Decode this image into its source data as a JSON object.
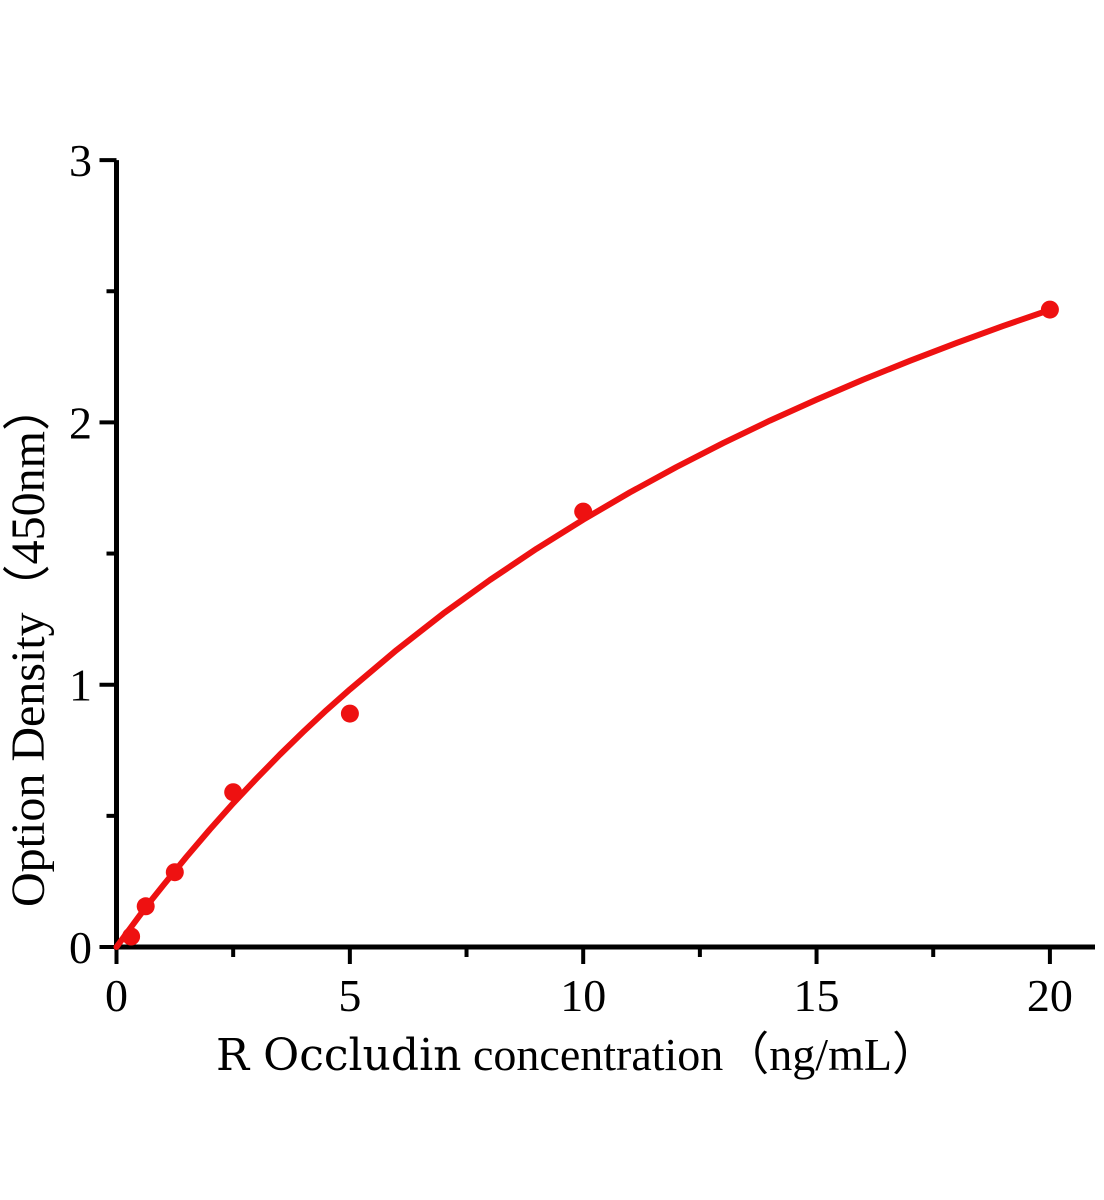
{
  "figure": {
    "background": "#ffffff",
    "axis_color": "#000000"
  },
  "chart_data": {
    "type": "scatter",
    "title": "",
    "xlabel": "R Occludin concentration（ng/mL）",
    "xlabel_prefix": "R Occludin",
    "xlabel_rest": " concentration（ng/mL）",
    "ylabel": "Option Density（450nm）",
    "xlim": [
      0,
      21
    ],
    "ylim": [
      0,
      3
    ],
    "grid": false,
    "legend": false,
    "x_ticks": {
      "major": [
        0,
        5,
        10,
        15,
        20
      ],
      "labels": [
        "0",
        "5",
        "10",
        "15",
        "20"
      ],
      "minor": [
        2.5,
        7.5,
        12.5,
        17.5
      ]
    },
    "y_ticks": {
      "major": [
        0,
        1,
        2,
        3
      ],
      "labels": [
        "0",
        "1",
        "2",
        "3"
      ],
      "minor": [
        0.5,
        1.5,
        2.5
      ]
    },
    "series": [
      {
        "name": "standard-points",
        "type": "scatter",
        "marker": "circle",
        "color": "#ee1111",
        "points": [
          {
            "x": 0.313,
            "y": 0.04
          },
          {
            "x": 0.625,
            "y": 0.155
          },
          {
            "x": 1.25,
            "y": 0.285
          },
          {
            "x": 2.5,
            "y": 0.59
          },
          {
            "x": 5,
            "y": 0.89
          },
          {
            "x": 10,
            "y": 1.66
          },
          {
            "x": 20,
            "y": 2.43
          }
        ]
      },
      {
        "name": "fitted-curve",
        "type": "line",
        "color": "#ee1111",
        "fit_points": [
          [
            0,
            0
          ],
          [
            0.25,
            0.061
          ],
          [
            0.5,
            0.121
          ],
          [
            0.75,
            0.179
          ],
          [
            1,
            0.235
          ],
          [
            1.5,
            0.344
          ],
          [
            2,
            0.448
          ],
          [
            2.5,
            0.548
          ],
          [
            3,
            0.642
          ],
          [
            3.5,
            0.733
          ],
          [
            4,
            0.82
          ],
          [
            4.5,
            0.903
          ],
          [
            5,
            0.982
          ],
          [
            6,
            1.132
          ],
          [
            7,
            1.271
          ],
          [
            8,
            1.399
          ],
          [
            9,
            1.518
          ],
          [
            10,
            1.629
          ],
          [
            11,
            1.733
          ],
          [
            12,
            1.83
          ],
          [
            13,
            1.921
          ],
          [
            14,
            2.007
          ],
          [
            15,
            2.087
          ],
          [
            16,
            2.163
          ],
          [
            17,
            2.235
          ],
          [
            18,
            2.303
          ],
          [
            19,
            2.368
          ],
          [
            20,
            2.429
          ]
        ]
      }
    ]
  }
}
